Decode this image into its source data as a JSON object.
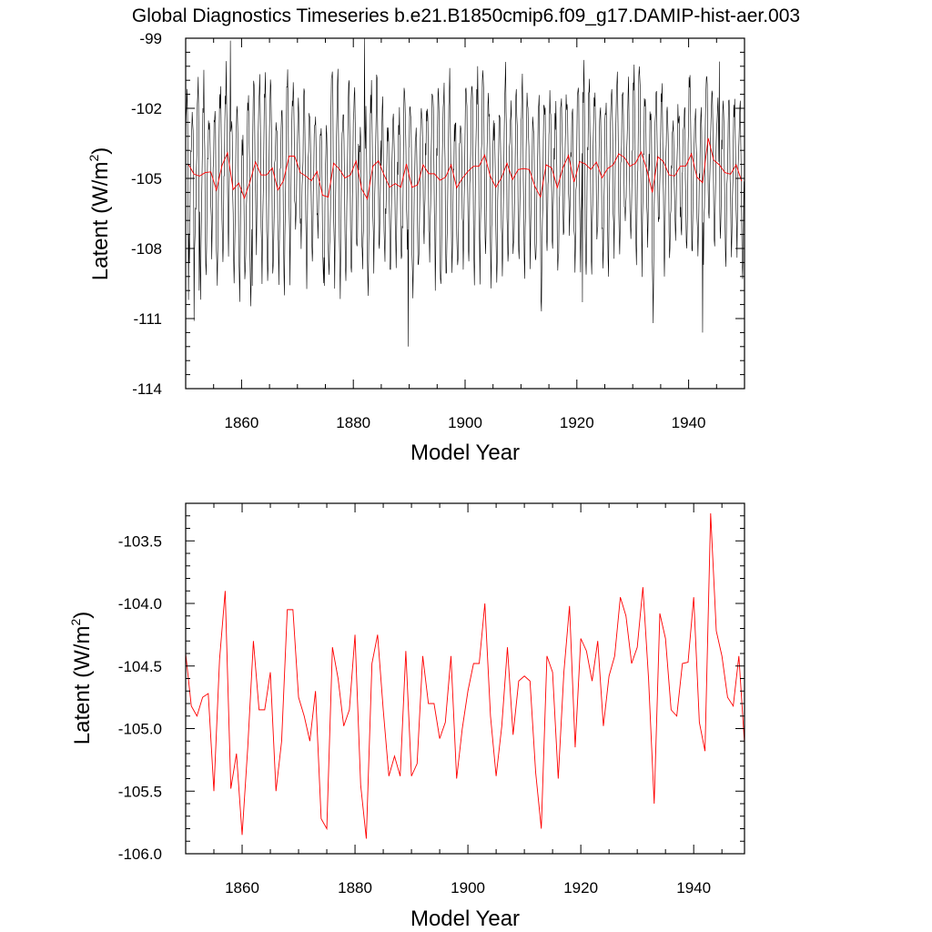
{
  "title": "Global Diagnostics Timeseries b.e21.B1850cmip6.f09_g17.DAMIP-hist-aer.003",
  "colors": {
    "monthly": "#000000",
    "annual": "#ff0000",
    "axis": "#000000"
  },
  "chart_data": [
    {
      "type": "line",
      "xlabel": "Model Year",
      "ylabel": "Latent (W/m",
      "ylabel_sup": "2",
      "ylabel_close": ")",
      "xlim": [
        1850,
        1950
      ],
      "ylim": [
        -114,
        -99
      ],
      "xticks": [
        1860,
        1880,
        1900,
        1920,
        1940
      ],
      "xtick_labels": [
        "1860",
        "1880",
        "1900",
        "1920",
        "1940"
      ],
      "yticks": [
        -114,
        -111,
        -108,
        -105,
        -102,
        -99
      ],
      "ytick_labels": [
        "-114",
        "-111",
        "-108",
        "-105",
        "-102",
        "-99"
      ],
      "grid": false,
      "series": [
        {
          "style": "monthly",
          "color": "#000000",
          "start_year": 1850,
          "interval": 0.0833333,
          "monthly_mean": [
            -103.3,
            -101.9,
            -101.7,
            -101.3,
            -102.4,
            -104.1,
            -106.2,
            -107.3,
            -108.2,
            -106.9,
            -105.4,
            -104.1
          ],
          "extremes": [
            {
              "x": 1850.5,
              "y": -110.2
            },
            {
              "x": 1851.5,
              "y": -111.1
            },
            {
              "x": 1852.4,
              "y": -109.8
            },
            {
              "x": 1858.0,
              "y": -99.1
            },
            {
              "x": 1861.9,
              "y": -109.6
            },
            {
              "x": 1874.8,
              "y": -109.6
            },
            {
              "x": 1882.0,
              "y": -99.0
            },
            {
              "x": 1889.8,
              "y": -112.2
            },
            {
              "x": 1921.0,
              "y": -110.3
            },
            {
              "x": 1942.5,
              "y": -111.6
            },
            {
              "x": 1945.5,
              "y": -100.0
            }
          ],
          "note": ""
        },
        {
          "style": "annual",
          "color": "#ff0000",
          "x": [
            1850,
            1851,
            1852,
            1853,
            1854,
            1855,
            1856,
            1857,
            1858,
            1859,
            1860,
            1861,
            1862,
            1863,
            1864,
            1865,
            1866,
            1867,
            1868,
            1869,
            1870,
            1871,
            1872,
            1873,
            1874,
            1875,
            1876,
            1877,
            1878,
            1879,
            1880,
            1881,
            1882,
            1883,
            1884,
            1885,
            1886,
            1887,
            1888,
            1889,
            1890,
            1891,
            1892,
            1893,
            1894,
            1895,
            1896,
            1897,
            1898,
            1899,
            1900,
            1901,
            1902,
            1903,
            1904,
            1905,
            1906,
            1907,
            1908,
            1909,
            1910,
            1911,
            1912,
            1913,
            1914,
            1915,
            1916,
            1917,
            1918,
            1919,
            1920,
            1921,
            1922,
            1923,
            1924,
            1925,
            1926,
            1927,
            1928,
            1929,
            1930,
            1931,
            1932,
            1933,
            1934,
            1935,
            1936,
            1937,
            1938,
            1939,
            1940,
            1941,
            1942,
            1943,
            1944,
            1945,
            1946,
            1947,
            1948,
            1949
          ],
          "values": [
            -104.4,
            -104.82,
            -104.9,
            -104.75,
            -104.72,
            -105.5,
            -104.45,
            -103.9,
            -105.48,
            -105.2,
            -105.85,
            -105.15,
            -104.3,
            -104.85,
            -104.85,
            -104.55,
            -105.5,
            -105.1,
            -104.05,
            -104.05,
            -104.75,
            -104.9,
            -105.1,
            -104.7,
            -105.72,
            -105.8,
            -104.35,
            -104.6,
            -104.98,
            -104.85,
            -104.25,
            -105.45,
            -105.88,
            -104.48,
            -104.25,
            -104.85,
            -105.38,
            -105.22,
            -105.38,
            -104.38,
            -105.38,
            -105.28,
            -104.42,
            -104.8,
            -104.8,
            -105.08,
            -104.95,
            -104.42,
            -105.4,
            -105.0,
            -104.7,
            -104.48,
            -104.48,
            -104.0,
            -104.9,
            -105.38,
            -104.98,
            -104.35,
            -105.05,
            -104.62,
            -104.58,
            -104.62,
            -105.35,
            -105.8,
            -104.42,
            -104.55,
            -105.4,
            -104.55,
            -104.02,
            -105.15,
            -104.28,
            -104.38,
            -104.62,
            -104.3,
            -104.98,
            -104.58,
            -104.42,
            -103.95,
            -104.1,
            -104.48,
            -104.35,
            -103.87,
            -104.6,
            -105.6,
            -104.08,
            -104.28,
            -104.85,
            -104.9,
            -104.48,
            -104.47,
            -103.95,
            -104.95,
            -105.18,
            -103.28,
            -104.22,
            -104.42,
            -104.75,
            -104.82,
            -104.42,
            -105.12
          ],
          "note": ""
        }
      ]
    },
    {
      "type": "line",
      "xlabel": "Model Year",
      "ylabel": "Latent (W/m",
      "ylabel_sup": "2",
      "ylabel_close": ")",
      "xlim": [
        1850,
        1949
      ],
      "ylim": [
        -106.0,
        -103.2
      ],
      "xticks": [
        1860,
        1880,
        1900,
        1920,
        1940
      ],
      "xtick_labels": [
        "1860",
        "1880",
        "1900",
        "1920",
        "1940"
      ],
      "yticks": [
        -106.0,
        -105.5,
        -105.0,
        -104.5,
        -104.0,
        -103.5
      ],
      "ytick_labels": [
        "-106.0",
        "-105.5",
        "-105.0",
        "-104.5",
        "-104.0",
        "-103.5"
      ],
      "grid": false,
      "series": [
        {
          "style": "annual",
          "color": "#ff0000",
          "source": "same as panel 1 annual series"
        }
      ]
    }
  ]
}
